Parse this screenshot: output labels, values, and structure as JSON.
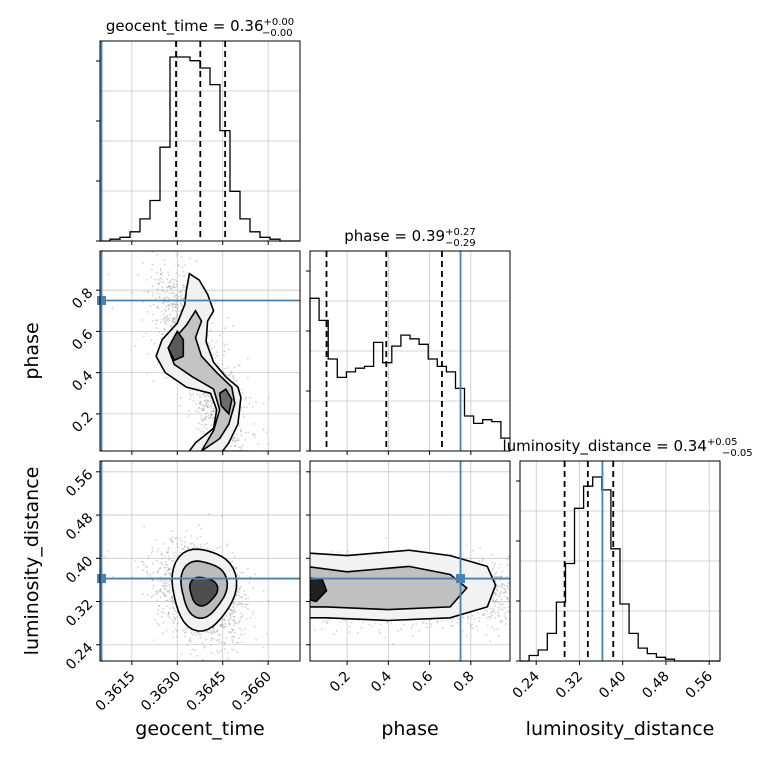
{
  "chart_data": {
    "type": "corner",
    "parameters": [
      "geocent_time",
      "phase",
      "luminosity_distance"
    ],
    "injection_color": "#4682b4",
    "titles": [
      {
        "param": "geocent_time",
        "prefix": "geocent_time = 0.36",
        "plus": "+0.00",
        "minus": "−0.00"
      },
      {
        "param": "phase",
        "prefix": "phase = 0.39",
        "plus": "+0.27",
        "minus": "−0.29"
      },
      {
        "param": "luminosity_distance",
        "prefix": "luminosity_distance = 0.34",
        "plus": "+0.05",
        "minus": "−0.05"
      }
    ],
    "axes": {
      "geocent_time": {
        "label": "geocent_time",
        "range": [
          0.36045,
          0.36705
        ],
        "ticks": [
          0.3615,
          0.363,
          0.3645,
          0.366
        ],
        "tick_labels": [
          "0.3615",
          "0.3630",
          "0.3645",
          "0.3660"
        ],
        "injection": 0.3605,
        "quantiles": [
          0.36296,
          0.36376,
          0.36458
        ]
      },
      "phase": {
        "label": "phase",
        "range": [
          0.02,
          0.99
        ],
        "ticks": [
          0.2,
          0.4,
          0.6,
          0.8
        ],
        "tick_labels": [
          "0.2",
          "0.4",
          "0.6",
          "0.8"
        ],
        "injection": 0.75,
        "quantiles": [
          0.1,
          0.39,
          0.66
        ]
      },
      "luminosity_distance": {
        "label": "luminosity_distance",
        "range": [
          0.21,
          0.58
        ],
        "ticks": [
          0.24,
          0.32,
          0.4,
          0.48,
          0.56
        ],
        "tick_labels": [
          "0.24",
          "0.32",
          "0.40",
          "0.48",
          "0.56"
        ],
        "injection": 0.3625,
        "quantiles": [
          0.2925,
          0.3355,
          0.3825
        ]
      }
    },
    "histograms": {
      "geocent_time": [
        0.0,
        0.01,
        0.02,
        0.05,
        0.12,
        0.22,
        0.51,
        1.0,
        1.0,
        0.98,
        0.94,
        0.85,
        0.6,
        0.27,
        0.12,
        0.05,
        0.02,
        0.01,
        0.0,
        0.0
      ],
      "phase": [
        0.83,
        0.71,
        0.5,
        0.4,
        0.43,
        0.45,
        0.46,
        0.59,
        0.48,
        0.57,
        0.63,
        0.61,
        0.58,
        0.5,
        0.46,
        0.43,
        0.34,
        0.19,
        0.15,
        0.17,
        0.16,
        0.07
      ],
      "luminosity_distance": [
        0.0,
        0.03,
        0.06,
        0.15,
        0.32,
        0.53,
        0.83,
        0.95,
        1.0,
        0.93,
        0.61,
        0.31,
        0.15,
        0.07,
        0.04,
        0.02,
        0.01,
        0.0,
        0.0,
        0.0,
        0.0,
        0.0
      ]
    }
  }
}
